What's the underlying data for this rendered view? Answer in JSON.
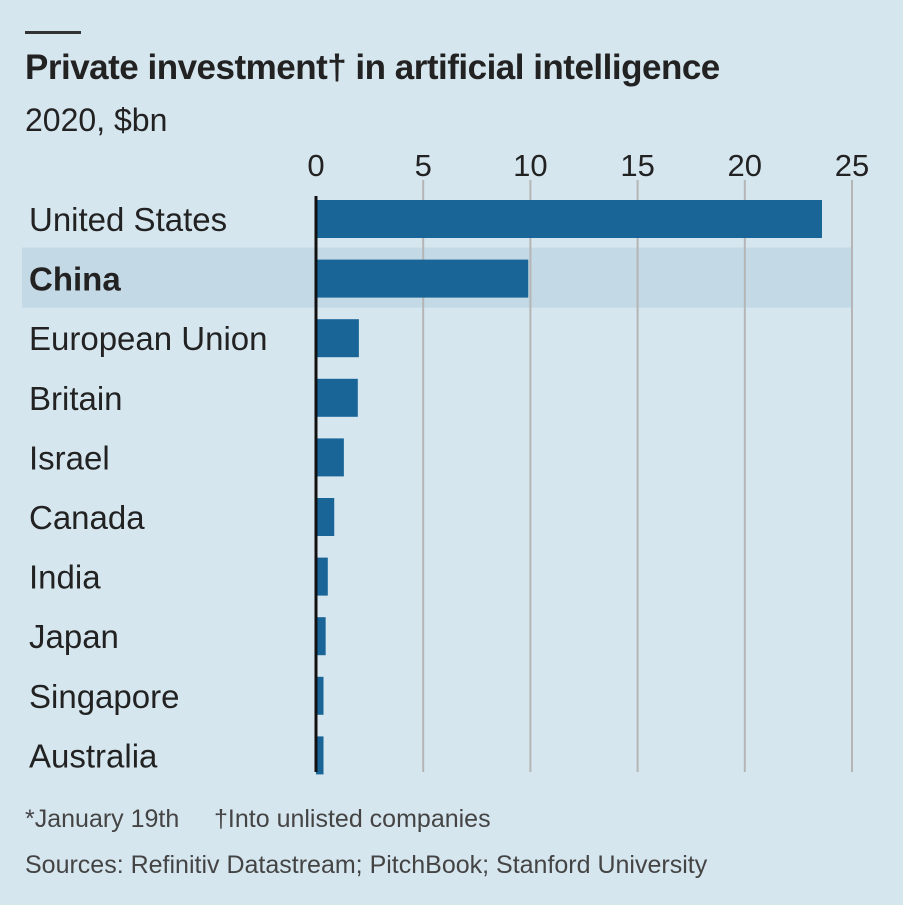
{
  "chart_data": {
    "type": "bar",
    "orientation": "horizontal",
    "title": "Private investment† in artificial intelligence",
    "subtitle": "2020, $bn",
    "categories": [
      "United States",
      "China",
      "European Union",
      "Britain",
      "Israel",
      "Canada",
      "India",
      "Japan",
      "Singapore",
      "Australia"
    ],
    "values": [
      23.6,
      9.9,
      2.0,
      1.95,
      1.3,
      0.85,
      0.55,
      0.45,
      0.35,
      0.35
    ],
    "highlighted": "China",
    "xlim": [
      0,
      25
    ],
    "xticks": [
      "0",
      "5",
      "10",
      "15",
      "20",
      "25"
    ],
    "grid": true,
    "colors": {
      "bar": "#1a6597",
      "highlight_band": "#c3d9e5",
      "background": "#d6e6ef",
      "grid": "#b5b5b5"
    }
  },
  "footnotes": {
    "asterisk": "*January 19th",
    "dagger": "†Into unlisted companies",
    "sources": "Sources: Refinitiv Datastream; PitchBook; Stanford University"
  }
}
